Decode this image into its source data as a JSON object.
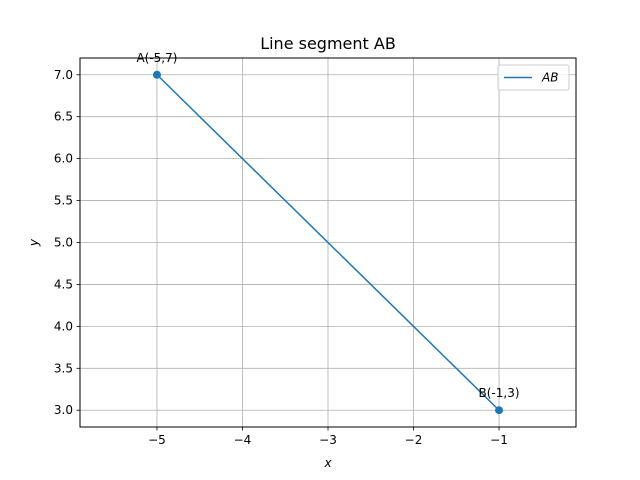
{
  "chart_data": {
    "type": "line",
    "title": "Line segment AB",
    "xlabel": "x",
    "ylabel": "y",
    "xlim": [
      -5.9,
      -0.1
    ],
    "ylim": [
      2.8,
      7.2
    ],
    "x_ticks": [
      -5,
      -4,
      -3,
      -2,
      -1
    ],
    "x_tick_labels": [
      "−5",
      "−4",
      "−3",
      "−2",
      "−1"
    ],
    "y_ticks": [
      3.0,
      3.5,
      4.0,
      4.5,
      5.0,
      5.5,
      6.0,
      6.5,
      7.0
    ],
    "y_tick_labels": [
      "3.0",
      "3.5",
      "4.0",
      "4.5",
      "5.0",
      "5.5",
      "6.0",
      "6.5",
      "7.0"
    ],
    "grid": true,
    "legend_position": "top-right",
    "series": [
      {
        "name": "AB",
        "color": "#1f77b4",
        "x": [
          -5,
          -1
        ],
        "y": [
          7,
          3
        ]
      }
    ],
    "points": [
      {
        "label": "A(-5,7)",
        "x": -5,
        "y": 7
      },
      {
        "label": "B(-1,3)",
        "x": -1,
        "y": 3
      }
    ]
  }
}
